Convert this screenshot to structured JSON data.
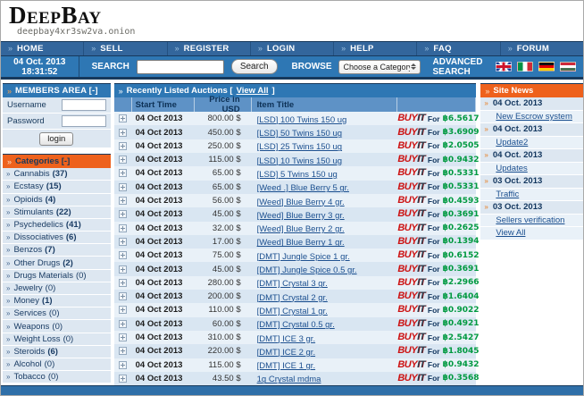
{
  "header": {
    "logo": "DeepBay",
    "onion_url": "deepbay4xr3sw2va.onion"
  },
  "nav": {
    "items": [
      "HOME",
      "SELL",
      "REGISTER",
      "LOGIN",
      "HELP",
      "FAQ",
      "FORUM"
    ]
  },
  "toolbar": {
    "datetime": "04 Oct. 2013 18:31:52",
    "search_label": "SEARCH",
    "search_value": "",
    "search_button": "Search",
    "browse_label": "BROWSE",
    "category_dropdown": "Choose a Category",
    "advanced_search": "ADVANCED SEARCH",
    "flags": [
      "uk-flag",
      "italy-flag",
      "germany-flag",
      "hungary-flag"
    ]
  },
  "members_area": {
    "title": "MEMBERS AREA [-]",
    "username_label": "Username",
    "password_label": "Password",
    "username_value": "",
    "password_value": "",
    "login_button": "login"
  },
  "categories": {
    "title": "Categories [-]",
    "items": [
      {
        "label": "Cannabis",
        "count": 37
      },
      {
        "label": "Ecstasy",
        "count": 15
      },
      {
        "label": "Opioids",
        "count": 4
      },
      {
        "label": "Stimulants",
        "count": 22
      },
      {
        "label": "Psychedelics",
        "count": 41
      },
      {
        "label": "Dissociatives",
        "count": 6
      },
      {
        "label": "Benzos",
        "count": 7
      },
      {
        "label": "Other Drugs",
        "count": 2
      },
      {
        "label": "Drugs Materials",
        "count": 0
      },
      {
        "label": "Jewelry",
        "count": 0
      },
      {
        "label": "Money",
        "count": 1
      },
      {
        "label": "Services",
        "count": 0
      },
      {
        "label": "Weapons",
        "count": 0
      },
      {
        "label": "Weight Loss",
        "count": 0
      },
      {
        "label": "Steroids",
        "count": 6
      },
      {
        "label": "Alcohol",
        "count": 0
      },
      {
        "label": "Tobacco",
        "count": 0
      }
    ]
  },
  "auctions": {
    "title_prefix": "Recently Listed Auctions [",
    "view_all": "View All",
    "title_suffix": "]",
    "columns": [
      "Start Time",
      "Price in USD",
      "Item Title"
    ],
    "buy_button": {
      "word1": "BUY",
      "word2": "IT",
      "for_label": "For"
    },
    "rows": [
      {
        "start_time": "04 Oct 2013",
        "price_usd": "800.00 $",
        "item_title": "[LSD] 100 Twins 150 ug",
        "btc": "฿6.5617"
      },
      {
        "start_time": "04 Oct 2013",
        "price_usd": "450.00 $",
        "item_title": "[LSD] 50 Twins 150 ug",
        "btc": "฿3.6909"
      },
      {
        "start_time": "04 Oct 2013",
        "price_usd": "250.00 $",
        "item_title": "[LSD] 25 Twins 150 ug",
        "btc": "฿2.0505"
      },
      {
        "start_time": "04 Oct 2013",
        "price_usd": "115.00 $",
        "item_title": "[LSD] 10 Twins 150 ug",
        "btc": "฿0.9432"
      },
      {
        "start_time": "04 Oct 2013",
        "price_usd": "65.00 $",
        "item_title": "[LSD] 5 Twins 150 ug",
        "btc": "฿0.5331"
      },
      {
        "start_time": "04 Oct 2013",
        "price_usd": "65.00 $",
        "item_title": "[Weed .] Blue Berry 5 gr.",
        "btc": "฿0.5331"
      },
      {
        "start_time": "04 Oct 2013",
        "price_usd": "56.00 $",
        "item_title": "[Weed] Blue Berry 4 gr.",
        "btc": "฿0.4593"
      },
      {
        "start_time": "04 Oct 2013",
        "price_usd": "45.00 $",
        "item_title": "[Weed] Blue Berry 3 gr.",
        "btc": "฿0.3691"
      },
      {
        "start_time": "04 Oct 2013",
        "price_usd": "32.00 $",
        "item_title": "[Weed] Blue Berry 2 gr.",
        "btc": "฿0.2625"
      },
      {
        "start_time": "04 Oct 2013",
        "price_usd": "17.00 $",
        "item_title": "[Weed] Blue Berry 1 gr.",
        "btc": "฿0.1394"
      },
      {
        "start_time": "04 Oct 2013",
        "price_usd": "75.00 $",
        "item_title": "[DMT] Jungle Spice 1 gr.",
        "btc": "฿0.6152"
      },
      {
        "start_time": "04 Oct 2013",
        "price_usd": "45.00 $",
        "item_title": "[DMT] Jungle Spice 0.5 gr.",
        "btc": "฿0.3691"
      },
      {
        "start_time": "04 Oct 2013",
        "price_usd": "280.00 $",
        "item_title": "[DMT] Crystal 3 gr.",
        "btc": "฿2.2966"
      },
      {
        "start_time": "04 Oct 2013",
        "price_usd": "200.00 $",
        "item_title": "[DMT] Crystal 2 gr.",
        "btc": "฿1.6404"
      },
      {
        "start_time": "04 Oct 2013",
        "price_usd": "110.00 $",
        "item_title": "[DMT] Crystal 1 gr.",
        "btc": "฿0.9022"
      },
      {
        "start_time": "04 Oct 2013",
        "price_usd": "60.00 $",
        "item_title": "[DMT] Crystal 0.5 gr.",
        "btc": "฿0.4921"
      },
      {
        "start_time": "04 Oct 2013",
        "price_usd": "310.00 $",
        "item_title": "[DMT] ICE 3 gr.",
        "btc": "฿2.5427"
      },
      {
        "start_time": "04 Oct 2013",
        "price_usd": "220.00 $",
        "item_title": "[DMT] ICE 2 gr.",
        "btc": "฿1.8045"
      },
      {
        "start_time": "04 Oct 2013",
        "price_usd": "115.00 $",
        "item_title": "[DMT] ICE 1 gr.",
        "btc": "฿0.9432"
      },
      {
        "start_time": "04 Oct 2013",
        "price_usd": "43.50 $",
        "item_title": "1g Crystal mdma",
        "btc": "฿0.3568"
      }
    ]
  },
  "site_news": {
    "title": "Site News",
    "items": [
      {
        "date": "04 Oct. 2013",
        "link": "New Escrow system"
      },
      {
        "date": "04 Oct. 2013",
        "link": "Update2"
      },
      {
        "date": "04 Oct. 2013",
        "link": "Updates"
      },
      {
        "date": "03 Oct. 2013",
        "link": "Traffic"
      },
      {
        "date": "03 Oct. 2013",
        "link": "Sellers verification"
      }
    ],
    "view_all": "View All"
  },
  "colors": {
    "nav_blue": "#33669c",
    "toolbar_blue": "#2e77b4",
    "table_header_blue": "#5e92c6",
    "orange": "#ee611c",
    "dark_navy": "#17395c",
    "link_blue": "#1b4f8f",
    "btc_green": "#009940",
    "buy_red": "#cc1111",
    "row_light": "#e9f1f8",
    "row_dark": "#d9e6f2"
  }
}
